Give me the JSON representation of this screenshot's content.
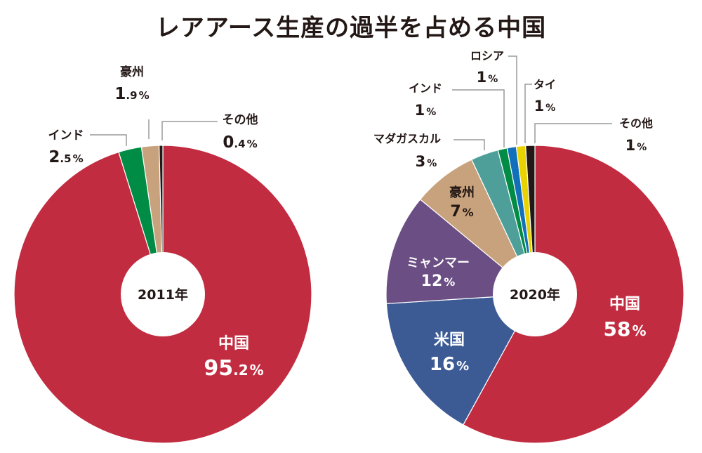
{
  "title": "レアアース生産の過半を占める中国",
  "colors": {
    "china": "#c22c40",
    "usa": "#3c5b95",
    "myanmar": "#6b4f84",
    "australia": "#c8a27c",
    "madagascar": "#4e9f9a",
    "india": "#008c44",
    "russia": "#1270ba",
    "thailand": "#e8d200",
    "other": "#231815",
    "leader": "#9a9a9a"
  },
  "chart_data": [
    {
      "type": "pie",
      "center_label": "2011年",
      "slices": [
        {
          "name": "中国",
          "value": 95.2,
          "value_int": "95",
          "value_dec": ".2",
          "unit": "%",
          "color_key": "china"
        },
        {
          "name": "インド",
          "value": 2.5,
          "value_int": "2",
          "value_dec": ".5",
          "unit": "%",
          "color_key": "india"
        },
        {
          "name": "豪州",
          "value": 1.9,
          "value_int": "1",
          "value_dec": ".9",
          "unit": "%",
          "color_key": "australia"
        },
        {
          "name": "その他",
          "value": 0.4,
          "value_int": "0",
          "value_dec": ".4",
          "unit": "%",
          "color_key": "other"
        }
      ]
    },
    {
      "type": "pie",
      "center_label": "2020年",
      "slices": [
        {
          "name": "中国",
          "value": 58,
          "value_int": "58",
          "value_dec": "",
          "unit": "%",
          "color_key": "china"
        },
        {
          "name": "米国",
          "value": 16,
          "value_int": "16",
          "value_dec": "",
          "unit": "%",
          "color_key": "usa"
        },
        {
          "name": "ミャンマー",
          "value": 12,
          "value_int": "12",
          "value_dec": "",
          "unit": "%",
          "color_key": "myanmar"
        },
        {
          "name": "豪州",
          "value": 7,
          "value_int": "7",
          "value_dec": "",
          "unit": "%",
          "color_key": "australia"
        },
        {
          "name": "マダガスカル",
          "value": 3,
          "value_int": "3",
          "value_dec": "",
          "unit": "%",
          "color_key": "madagascar"
        },
        {
          "name": "インド",
          "value": 1,
          "value_int": "1",
          "value_dec": "",
          "unit": "%",
          "color_key": "india"
        },
        {
          "name": "ロシア",
          "value": 1,
          "value_int": "1",
          "value_dec": "",
          "unit": "%",
          "color_key": "russia"
        },
        {
          "name": "タイ",
          "value": 1,
          "value_int": "1",
          "value_dec": "",
          "unit": "%",
          "color_key": "thailand"
        },
        {
          "name": "その他",
          "value": 1,
          "value_int": "1",
          "value_dec": "",
          "unit": "%",
          "color_key": "other"
        }
      ]
    }
  ]
}
